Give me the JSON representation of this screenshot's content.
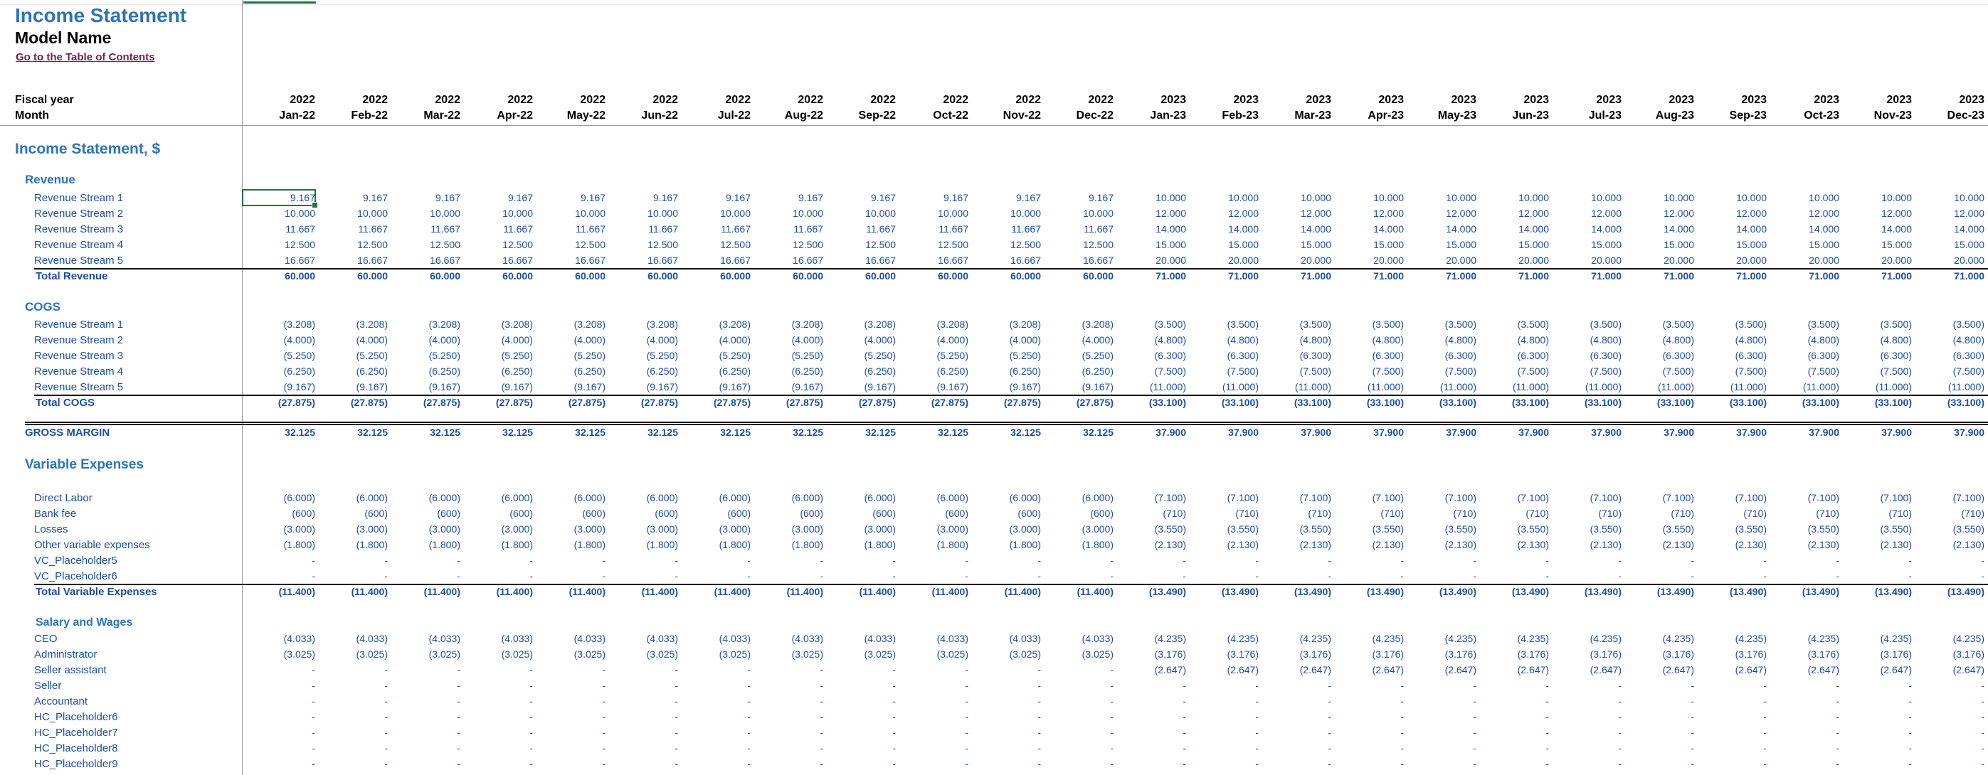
{
  "header": {
    "title": "Income Statement",
    "model_name": "Model Name",
    "toc_link": "Go to the Table of Contents",
    "fiscal_year_label": "Fiscal year",
    "month_label": "Month"
  },
  "columns": [
    {
      "year": "2022",
      "month": "Jan-22"
    },
    {
      "year": "2022",
      "month": "Feb-22"
    },
    {
      "year": "2022",
      "month": "Mar-22"
    },
    {
      "year": "2022",
      "month": "Apr-22"
    },
    {
      "year": "2022",
      "month": "May-22"
    },
    {
      "year": "2022",
      "month": "Jun-22"
    },
    {
      "year": "2022",
      "month": "Jul-22"
    },
    {
      "year": "2022",
      "month": "Aug-22"
    },
    {
      "year": "2022",
      "month": "Sep-22"
    },
    {
      "year": "2022",
      "month": "Oct-22"
    },
    {
      "year": "2022",
      "month": "Nov-22"
    },
    {
      "year": "2022",
      "month": "Dec-22"
    },
    {
      "year": "2023",
      "month": "Jan-23"
    },
    {
      "year": "2023",
      "month": "Feb-23"
    },
    {
      "year": "2023",
      "month": "Mar-23"
    },
    {
      "year": "2023",
      "month": "Apr-23"
    },
    {
      "year": "2023",
      "month": "May-23"
    },
    {
      "year": "2023",
      "month": "Jun-23"
    },
    {
      "year": "2023",
      "month": "Jul-23"
    },
    {
      "year": "2023",
      "month": "Aug-23"
    },
    {
      "year": "2023",
      "month": "Sep-23"
    },
    {
      "year": "2023",
      "month": "Oct-23"
    },
    {
      "year": "2023",
      "month": "Nov-23"
    },
    {
      "year": "2023",
      "month": "Dec-23"
    }
  ],
  "section_title": "Income Statement, $",
  "rows": [
    {
      "type": "head",
      "label": "Revenue"
    },
    {
      "type": "item",
      "label": "Revenue Stream 1",
      "a": "9.167",
      "b": "10.000"
    },
    {
      "type": "item",
      "label": "Revenue Stream 2",
      "a": "10.000",
      "b": "12.000"
    },
    {
      "type": "item",
      "label": "Revenue Stream 3",
      "a": "11.667",
      "b": "14.000"
    },
    {
      "type": "item",
      "label": "Revenue Stream 4",
      "a": "12.500",
      "b": "15.000"
    },
    {
      "type": "item",
      "label": "Revenue Stream 5",
      "a": "16.667",
      "b": "20.000"
    },
    {
      "type": "total",
      "label": "Total Revenue",
      "a": "60.000",
      "b": "71.000"
    },
    {
      "type": "head",
      "label": "COGS"
    },
    {
      "type": "item",
      "label": "Revenue Stream 1",
      "a": "(3.208)",
      "b": "(3.500)"
    },
    {
      "type": "item",
      "label": "Revenue Stream 2",
      "a": "(4.000)",
      "b": "(4.800)"
    },
    {
      "type": "item",
      "label": "Revenue Stream 3",
      "a": "(5.250)",
      "b": "(6.300)"
    },
    {
      "type": "item",
      "label": "Revenue Stream 4",
      "a": "(6.250)",
      "b": "(7.500)"
    },
    {
      "type": "item",
      "label": "Revenue Stream 5",
      "a": "(9.167)",
      "b": "(11.000)"
    },
    {
      "type": "total",
      "label": "Total COGS",
      "a": "(27.875)",
      "b": "(33.100)"
    },
    {
      "type": "gross",
      "label": "GROSS MARGIN",
      "a": "32.125",
      "b": "37.900"
    },
    {
      "type": "head2",
      "label": "Variable Expenses"
    },
    {
      "type": "item",
      "label": "Direct Labor",
      "a": "(6.000)",
      "b": "(7.100)"
    },
    {
      "type": "item",
      "label": "Bank fee",
      "a": "(600)",
      "b": "(710)"
    },
    {
      "type": "item",
      "label": "Losses",
      "a": "(3.000)",
      "b": "(3.550)"
    },
    {
      "type": "item",
      "label": "Other variable expenses",
      "a": "(1.800)",
      "b": "(2.130)"
    },
    {
      "type": "item",
      "label": "VC_Placeholder5",
      "a": "-",
      "b": "-"
    },
    {
      "type": "item",
      "label": "VC_Placeholder6",
      "a": "-",
      "b": "-"
    },
    {
      "type": "total",
      "label": "Total Variable Expenses",
      "a": "(11.400)",
      "b": "(13.490)"
    },
    {
      "type": "head3",
      "label": "Salary and Wages"
    },
    {
      "type": "item",
      "label": "CEO",
      "a": "(4.033)",
      "b": "(4.235)"
    },
    {
      "type": "item",
      "label": "Administrator",
      "a": "(3.025)",
      "b": "(3.176)"
    },
    {
      "type": "item",
      "label": "Seller assistant",
      "a": "-",
      "b": "(2.647)"
    },
    {
      "type": "item",
      "label": "Seller",
      "a": "-",
      "b": "-"
    },
    {
      "type": "item",
      "label": "Accountant",
      "a": "-",
      "b": "-"
    },
    {
      "type": "item",
      "label": "HC_Placeholder6",
      "a": "-",
      "b": "-"
    },
    {
      "type": "item",
      "label": "HC_Placeholder7",
      "a": "-",
      "b": "-"
    },
    {
      "type": "item",
      "label": "HC_Placeholder8",
      "a": "-",
      "b": "-"
    },
    {
      "type": "item",
      "label": "HC_Placeholder9",
      "a": "-",
      "b": "-"
    }
  ]
}
